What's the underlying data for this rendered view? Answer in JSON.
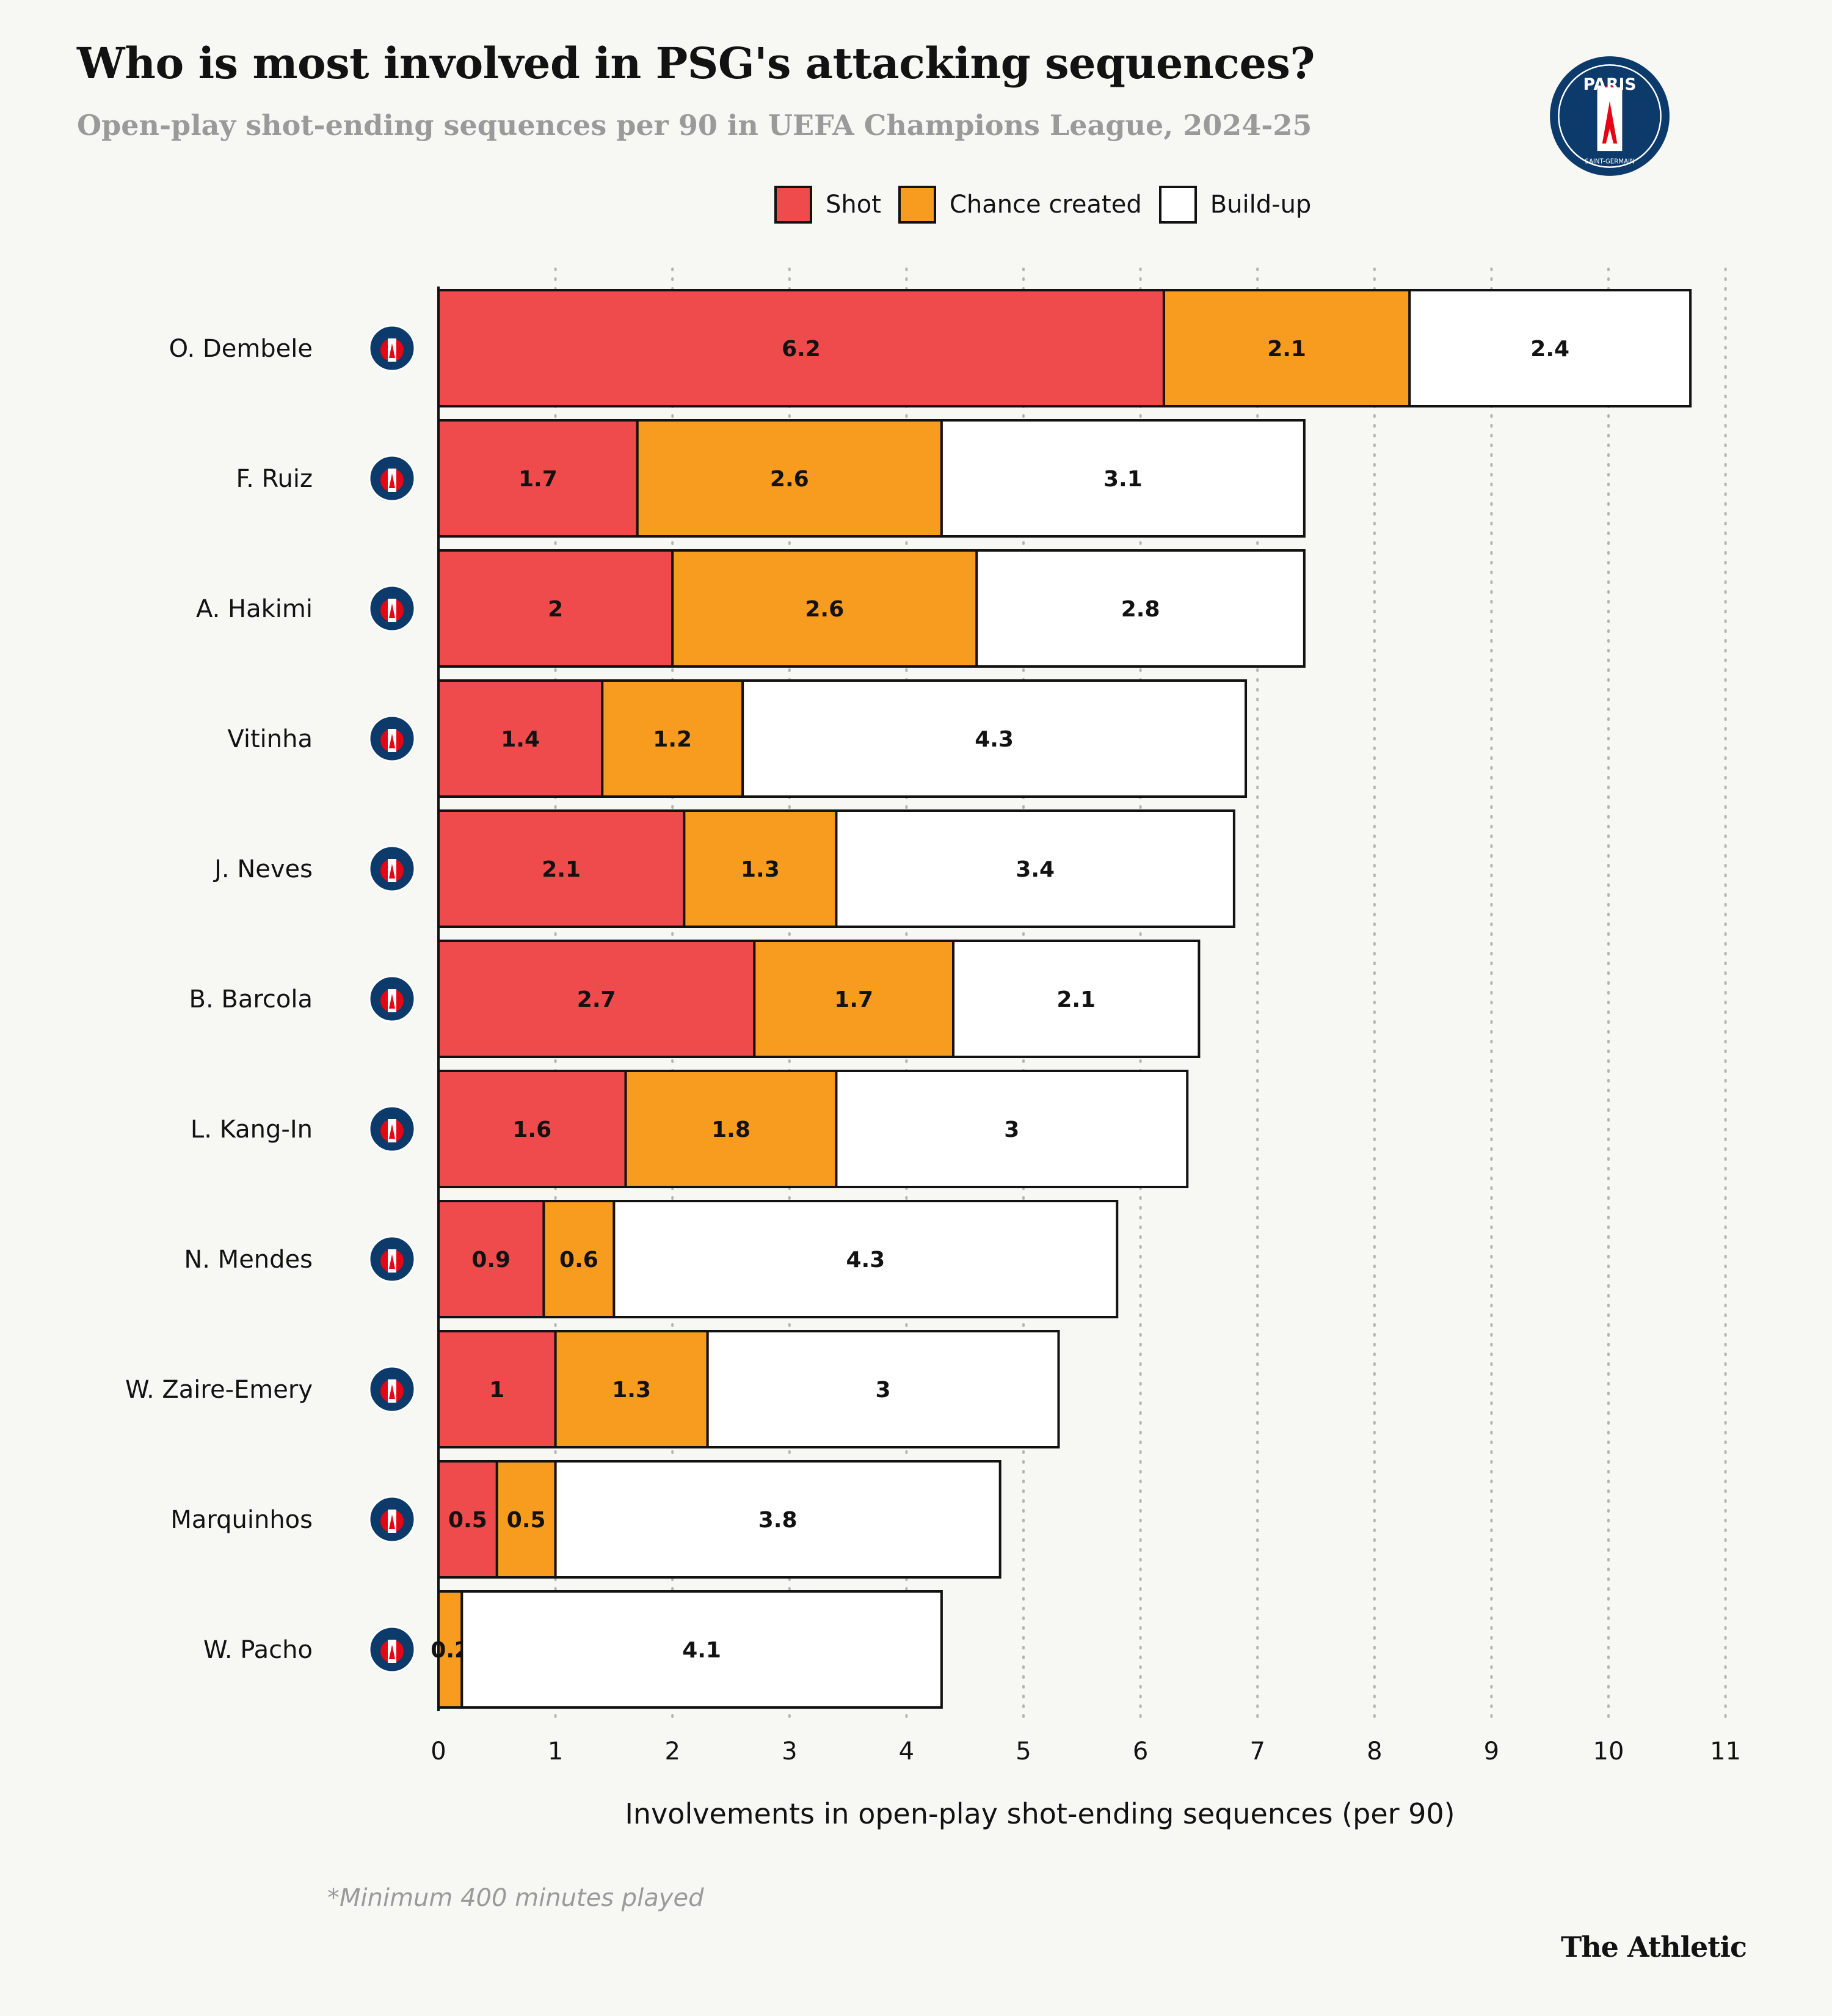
{
  "header": {
    "title": "Who is most involved in PSG's attacking sequences?",
    "subtitle": "Open-play shot-ending sequences per 90 in UEFA Champions League, 2024-25",
    "club_logo_text": "PARIS",
    "club_logo_subtext": "SAINT-GERMAIN"
  },
  "legend": [
    {
      "label": "Shot",
      "color": "#f04b4c"
    },
    {
      "label": "Chance created",
      "color": "#f79c1f"
    },
    {
      "label": "Build-up",
      "color": "#ffffff"
    }
  ],
  "colors": {
    "background": "#f7f7f3",
    "shot": "#f04b4c",
    "chance": "#f79c1f",
    "buildup": "#ffffff",
    "badge_navy": "#0b3a6b",
    "badge_red": "#e30613"
  },
  "chart_data": {
    "type": "bar",
    "orientation": "horizontal",
    "stacked": true,
    "categories": [
      "O. Dembele",
      "F. Ruiz",
      "A. Hakimi",
      "Vitinha",
      "J. Neves",
      "B. Barcola",
      "L. Kang-In",
      "N. Mendes",
      "W. Zaire-Emery",
      "Marquinhos",
      "W. Pacho"
    ],
    "series": [
      {
        "name": "Shot",
        "values": [
          6.2,
          1.7,
          2,
          1.4,
          2.1,
          2.7,
          1.6,
          0.9,
          1,
          0.5,
          0
        ]
      },
      {
        "name": "Chance created",
        "values": [
          2.1,
          2.6,
          2.6,
          1.2,
          1.3,
          1.7,
          1.8,
          0.6,
          1.3,
          0.5,
          0.2
        ]
      },
      {
        "name": "Build-up",
        "values": [
          2.4,
          3.1,
          2.8,
          4.3,
          3.4,
          2.1,
          3,
          4.3,
          3,
          3.8,
          4.1
        ]
      }
    ],
    "xlim": [
      0,
      11
    ],
    "xticks": [
      0,
      1,
      2,
      3,
      4,
      5,
      6,
      7,
      8,
      9,
      10,
      11
    ],
    "xlabel": "Involvements in open-play shot-ending sequences (per 90)",
    "ylabel": "",
    "grid": "vertical dotted",
    "legend": "top-center"
  },
  "footer": {
    "note": "*Minimum 400 minutes played",
    "brand": "The Athletic"
  }
}
